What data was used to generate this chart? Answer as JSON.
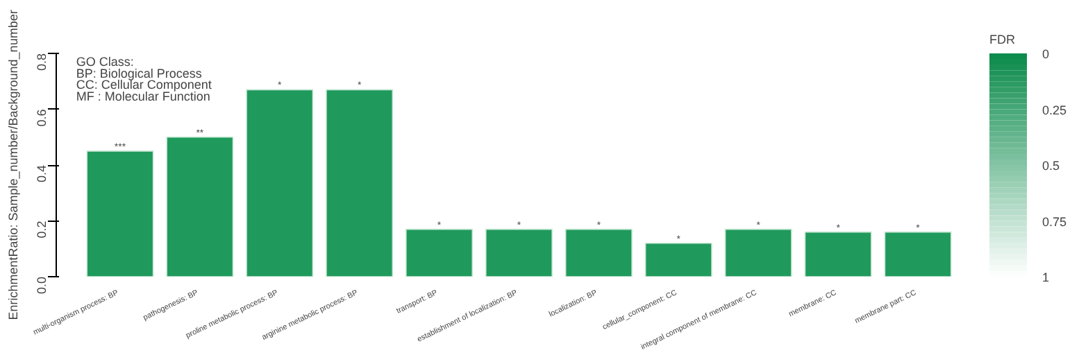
{
  "chart_data": {
    "type": "bar",
    "ylabel": "EnrichmentRatio: Sample_number/Background_number",
    "categories": [
      "multi-organism process:  BP",
      "pathogenesis:  BP",
      "proline metabolic process:  BP",
      "arginine metabolic process:  BP",
      "transport:  BP",
      "establishment of localization:  BP",
      "localization:  BP",
      "cellular_component:  CC",
      "integral component of membrane:  CC",
      "membrane:  CC",
      "membrane part:  CC"
    ],
    "values": [
      0.45,
      0.5,
      0.67,
      0.67,
      0.17,
      0.17,
      0.17,
      0.12,
      0.17,
      0.16,
      0.16
    ],
    "color": "#1f9a5c",
    "ylim": [
      0,
      0.8
    ],
    "yticks": [
      {
        "value": 0,
        "label": "0.0"
      },
      0.2,
      0.4,
      0.6,
      0.8
    ],
    "grid": false,
    "legend_title": "GO Class:",
    "annotations": [
      "BP: Biological Process",
      "CC: Cellular Component",
      "MF : Molecular Function",
      {
        "text": "***",
        "x": "multi-organism process:  BP",
        "y": 0.45
      },
      {
        "text": "**",
        "x": "pathogenesis:  BP",
        "y": 0.5
      },
      {
        "text": "*",
        "x": "proline metabolic process:  BP",
        "y": 0.67
      },
      {
        "text": "*",
        "x": "arginine metabolic process:  BP",
        "y": 0.67
      },
      {
        "text": "*",
        "x": "transport:  BP",
        "y": 0.17
      },
      {
        "text": "*",
        "x": "establishment of localization:  BP",
        "y": 0.17
      },
      {
        "text": "*",
        "x": "localization:  BP",
        "y": 0.17
      },
      {
        "text": "*",
        "x": "cellular_component:  CC",
        "y": 0.12
      },
      {
        "text": "*",
        "x": "integral component of membrane:  CC",
        "y": 0.17
      },
      {
        "text": "*",
        "x": "membrane:  CC",
        "y": 0.16
      },
      {
        "text": "*",
        "x": "membrane part:  CC",
        "y": 0.16
      }
    ],
    "clabel": "FDR",
    "clim": [
      1,
      0
    ],
    "cticks": [
      0,
      0.25,
      0.5,
      0.75,
      1
    ]
  }
}
